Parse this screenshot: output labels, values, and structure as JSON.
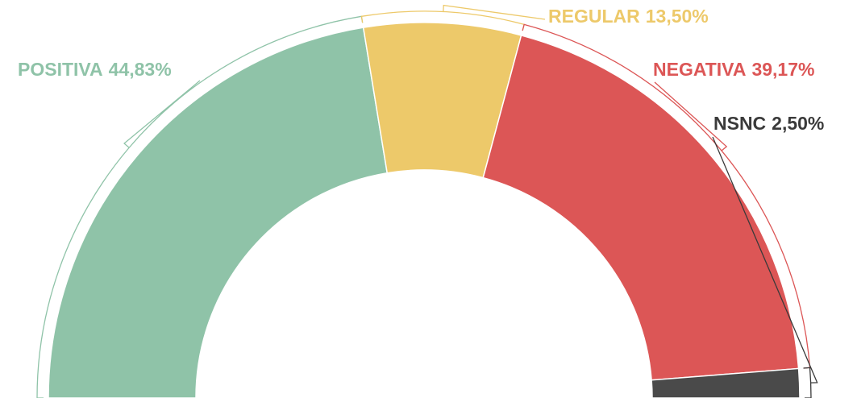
{
  "chart_data": {
    "type": "semi-donut",
    "categories": [
      "POSITIVA",
      "REGULAR",
      "NEGATIVA",
      "NSNC"
    ],
    "values": [
      44.83,
      13.5,
      39.17,
      2.5
    ],
    "value_labels": [
      "44,83%",
      "13,50%",
      "39,17%",
      "2,50%"
    ],
    "colors": [
      "#8fc3a8",
      "#edc96a",
      "#dc5656",
      "#4a4a4a"
    ],
    "label_colors": [
      "#8fc3a8",
      "#edc96a",
      "#dc5656",
      "#3a3a3a"
    ]
  }
}
